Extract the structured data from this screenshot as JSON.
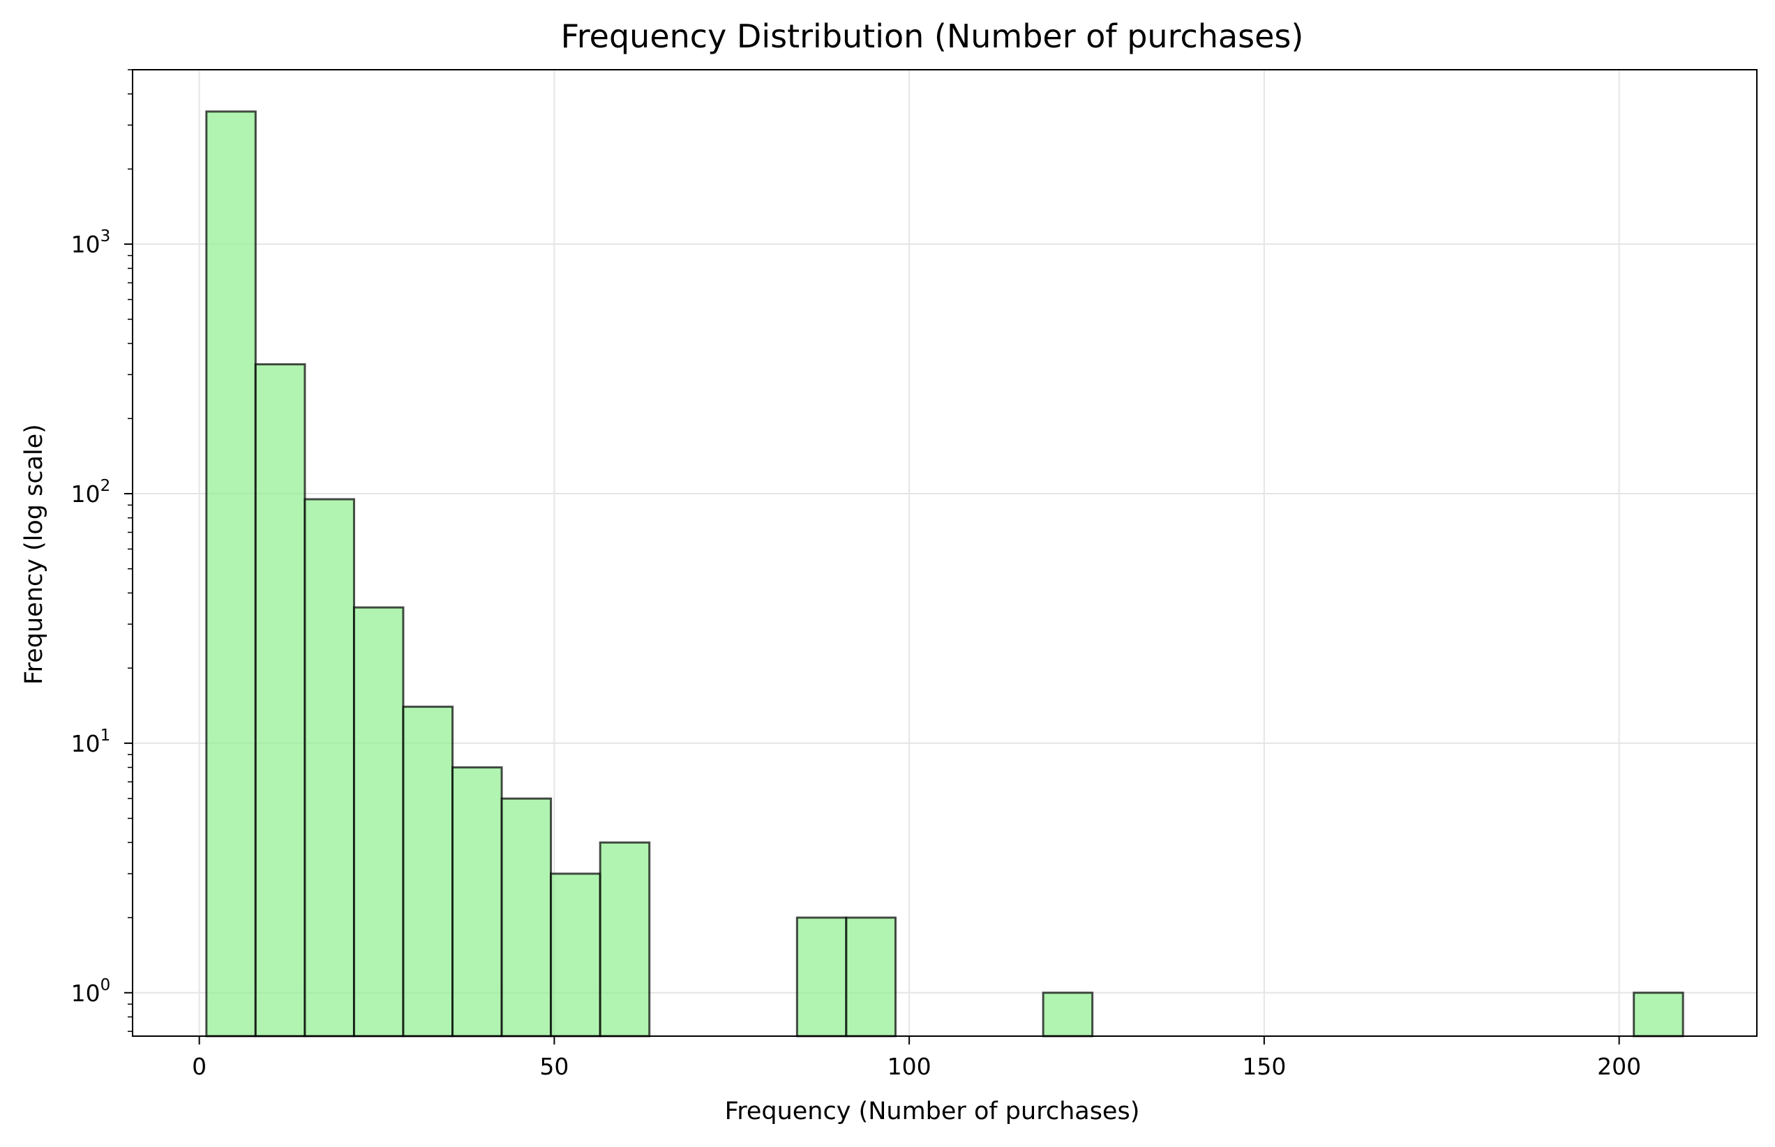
{
  "chart_data": {
    "type": "bar",
    "title": "Frequency Distribution (Number of purchases)",
    "xlabel": "Frequency (Number of purchases)",
    "ylabel": "Frequency (log scale)",
    "y_scale": "log",
    "xlim": [
      -9.4,
      219.4
    ],
    "ylim": [
      0.67,
      5000
    ],
    "x_ticks": [
      0,
      50,
      100,
      150,
      200
    ],
    "y_ticks": [
      {
        "value": 1,
        "base": "10",
        "exp": "0"
      },
      {
        "value": 10,
        "base": "10",
        "exp": "1"
      },
      {
        "value": 100,
        "base": "10",
        "exp": "2"
      },
      {
        "value": 1000,
        "base": "10",
        "exp": "3"
      }
    ],
    "grid": true,
    "colors": {
      "bar_fill": "#90ee90",
      "bar_edge": "#000000",
      "grid": "#e5e5e5"
    },
    "bins": [
      {
        "x0": 1.0,
        "x1": 7.93,
        "count": 3400
      },
      {
        "x0": 7.93,
        "x1": 14.87,
        "count": 330
      },
      {
        "x0": 14.87,
        "x1": 21.8,
        "count": 95
      },
      {
        "x0": 21.8,
        "x1": 28.73,
        "count": 35
      },
      {
        "x0": 28.73,
        "x1": 35.67,
        "count": 14
      },
      {
        "x0": 35.67,
        "x1": 42.6,
        "count": 8
      },
      {
        "x0": 42.6,
        "x1": 49.53,
        "count": 6
      },
      {
        "x0": 49.53,
        "x1": 56.47,
        "count": 3
      },
      {
        "x0": 56.47,
        "x1": 63.4,
        "count": 4
      },
      {
        "x0": 84.2,
        "x1": 91.13,
        "count": 2
      },
      {
        "x0": 91.13,
        "x1": 98.07,
        "count": 2
      },
      {
        "x0": 118.87,
        "x1": 125.8,
        "count": 1
      },
      {
        "x0": 202.07,
        "x1": 209.0,
        "count": 1
      }
    ]
  }
}
